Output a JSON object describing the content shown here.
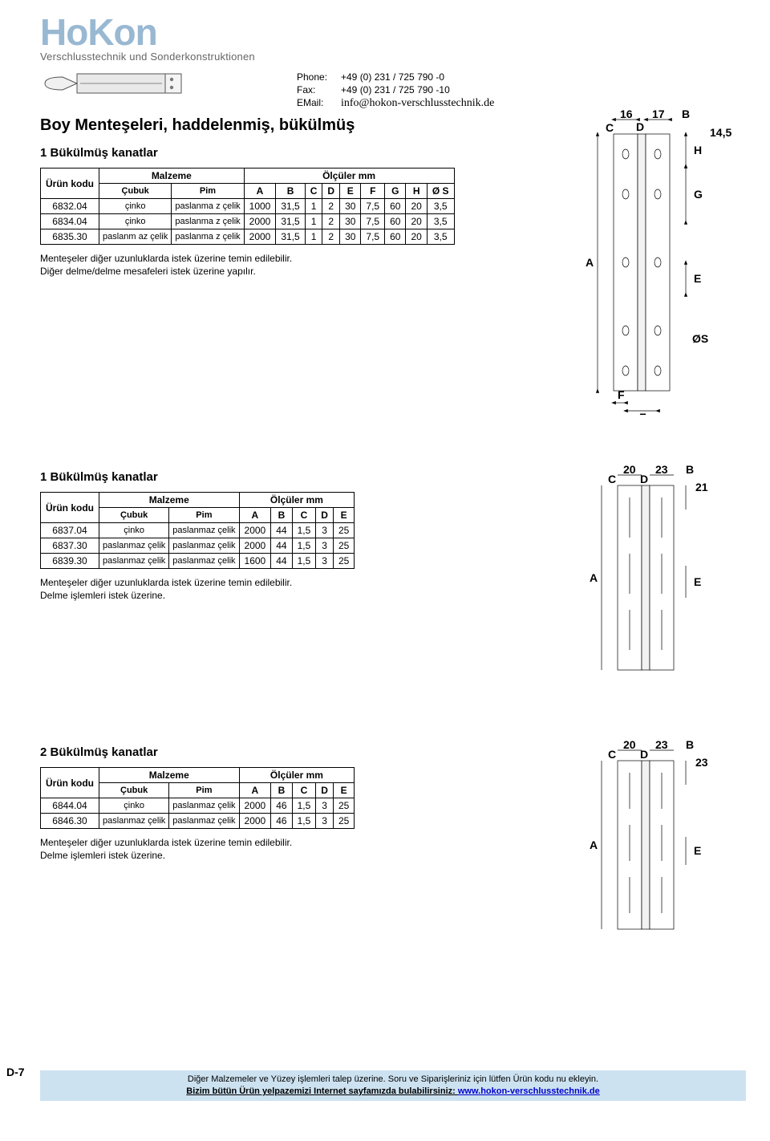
{
  "brand": {
    "wordmark": "HoKon",
    "tagline": "Verschlusstechnik und Sonderkonstruktionen"
  },
  "contact": {
    "phone_label": "Phone:",
    "phone": "+49 (0) 231 / 725 790 -0",
    "fax_label": "Fax:",
    "fax": "+49 (0) 231 / 725 790 -10",
    "email_label": "EMail:",
    "email": "info@hokon-verschlusstechnik.de"
  },
  "doc_title": "Boy Menteşeleri, haddelenmiş, bükülmüş",
  "section1": {
    "heading": "1 Bükülmüş kanatlar",
    "header_row": {
      "col_urun": "Ürün kodu",
      "col_malzeme": "Malzeme",
      "col_olculer": "Ölçüler mm",
      "sub_cubuk": "Çubuk",
      "sub_pim": "Pim",
      "sub_a": "A",
      "sub_b": "B",
      "sub_c": "C",
      "sub_d": "D",
      "sub_e": "E",
      "sub_f": "F",
      "sub_g": "G",
      "sub_h": "H",
      "sub_os": "Ø S"
    },
    "rows": [
      {
        "code": "6832.04",
        "cubuk": "çinko",
        "pim": "paslanma z çelik",
        "a": "1000",
        "b": "31,5",
        "c": "1",
        "d": "2",
        "e": "30",
        "f": "7,5",
        "g": "60",
        "h": "20",
        "os": "3,5"
      },
      {
        "code": "6834.04",
        "cubuk": "çinko",
        "pim": "paslanma z çelik",
        "a": "2000",
        "b": "31,5",
        "c": "1",
        "d": "2",
        "e": "30",
        "f": "7,5",
        "g": "60",
        "h": "20",
        "os": "3,5"
      },
      {
        "code": "6835.30",
        "cubuk": "paslanm az çelik",
        "pim": "paslanma z çelik",
        "a": "2000",
        "b": "31,5",
        "c": "1",
        "d": "2",
        "e": "30",
        "f": "7,5",
        "g": "60",
        "h": "20",
        "os": "3,5"
      }
    ],
    "note1": "Menteşeler diğer uzunluklarda istek üzerine temin edilebilir.",
    "note2": "Diğer delme/delme mesafeleri istek üzerine yapılır."
  },
  "section2": {
    "heading": "1 Bükülmüş kanatlar",
    "header": {
      "urun": "Ürün kodu",
      "malzeme": "Malzeme",
      "olculer": "Ölçüler mm",
      "cubuk": "Çubuk",
      "pim": "Pim",
      "a": "A",
      "b": "B",
      "c": "C",
      "d": "D",
      "e": "E"
    },
    "rows": [
      {
        "code": "6837.04",
        "cubuk": "çinko",
        "pim": "paslanmaz çelik",
        "a": "2000",
        "b": "44",
        "c": "1,5",
        "d": "3",
        "e": "25"
      },
      {
        "code": "6837.30",
        "cubuk": "paslanmaz çelik",
        "pim": "paslanmaz çelik",
        "a": "2000",
        "b": "44",
        "c": "1,5",
        "d": "3",
        "e": "25"
      },
      {
        "code": "6839.30",
        "cubuk": "paslanmaz çelik",
        "pim": "paslanmaz çelik",
        "a": "1600",
        "b": "44",
        "c": "1,5",
        "d": "3",
        "e": "25"
      }
    ],
    "note1": "Menteşeler diğer uzunluklarda istek üzerine temin edilebilir.",
    "note2": "Delme işlemleri istek üzerine."
  },
  "section3": {
    "heading": "2 Bükülmüş kanatlar",
    "header": {
      "urun": "Ürün kodu",
      "malzeme": "Malzeme",
      "olculer": "Ölçüler mm",
      "cubuk": "Çubuk",
      "pim": "Pim",
      "a": "A",
      "b": "B",
      "c": "C",
      "d": "D",
      "e": "E"
    },
    "rows": [
      {
        "code": "6844.04",
        "cubuk": "çinko",
        "pim": "paslanmaz çelik",
        "a": "2000",
        "b": "46",
        "c": "1,5",
        "d": "3",
        "e": "25"
      },
      {
        "code": "6846.30",
        "cubuk": "paslanmaz çelik",
        "pim": "paslanmaz çelik",
        "a": "2000",
        "b": "46",
        "c": "1,5",
        "d": "3",
        "e": "25"
      }
    ],
    "note1": "Menteşeler diğer uzunluklarda istek üzerine temin edilebilir.",
    "note2": "Delme işlemleri istek üzerine."
  },
  "figures": {
    "fig1": {
      "labels": {
        "a": "A",
        "b": "B",
        "c": "C",
        "d": "D",
        "e": "E",
        "f": "F",
        "g": "G",
        "h": "H",
        "os": "ØS",
        "t16": "16",
        "t17": "17",
        "t145": "14,5"
      }
    },
    "fig2": {
      "labels": {
        "a": "A",
        "b": "B",
        "c": "C",
        "d": "D",
        "e": "E",
        "t20": "20",
        "t23": "23",
        "t21": "21"
      }
    },
    "fig3": {
      "labels": {
        "a": "A",
        "b": "B",
        "c": "C",
        "d": "D",
        "e": "E",
        "t20": "20",
        "t23": "23",
        "t23b": "23"
      }
    }
  },
  "page_number": "D-7",
  "footer": {
    "line1": "Diğer Malzemeler ve Yüzey işlemleri talep üzerine. Soru ve Siparişleriniz için lütfen Ürün kodu nu ekleyin.",
    "line2_prefix": "Bizim bütün Ürün yelpazemizi Internet sayfamızda bulabilirsiniz: ",
    "line2_link": "www.hokon-verschlusstechnik.de"
  },
  "style": {
    "accent": "#99b8d2",
    "footer_bg": "#cde2f0",
    "linewidth": 0.7
  }
}
